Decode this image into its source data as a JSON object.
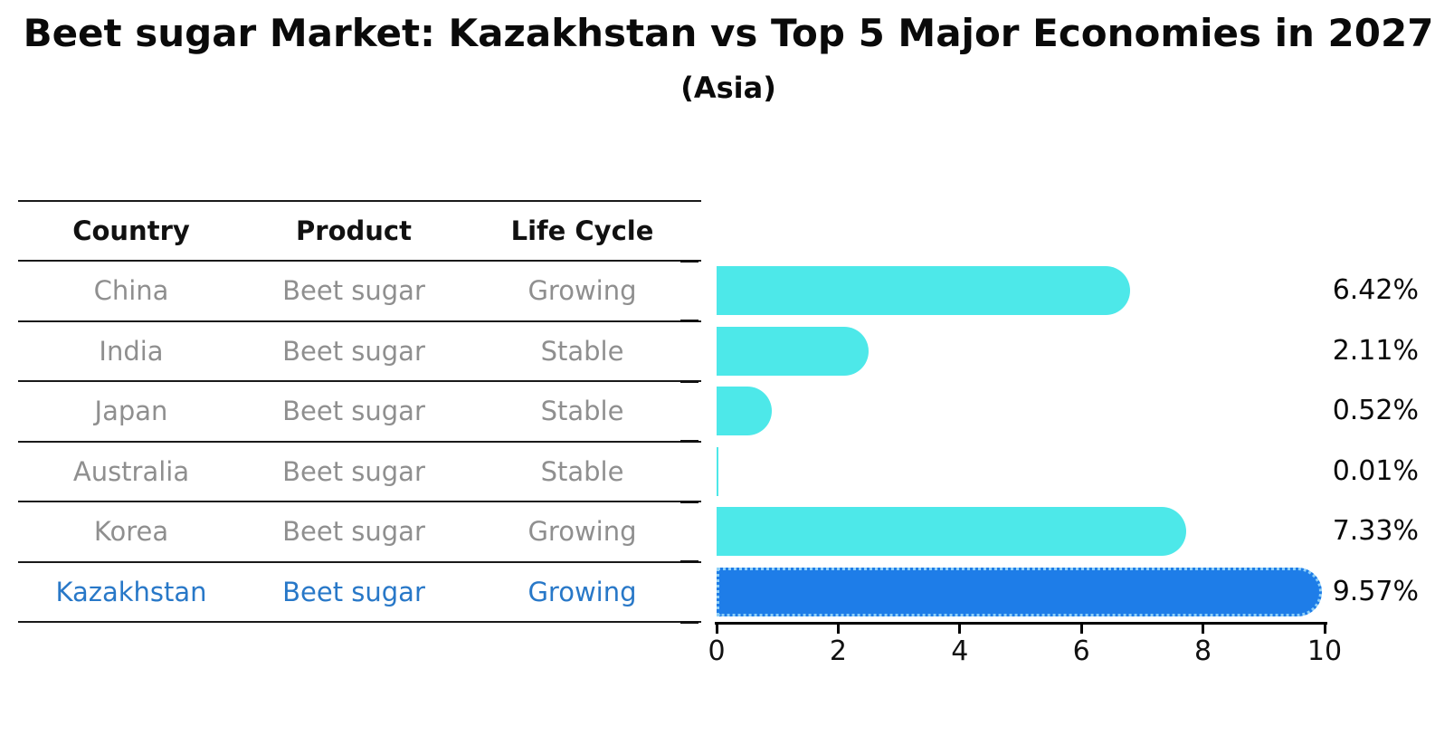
{
  "chart_data": {
    "type": "bar",
    "orientation": "horizontal",
    "title": "Beet sugar Market: Kazakhstan vs Top 5 Major Economies in 2027",
    "subtitle": "(Asia)",
    "categories": [
      "China",
      "India",
      "Japan",
      "Australia",
      "Korea",
      "Kazakhstan"
    ],
    "values": [
      6.42,
      2.11,
      0.52,
      0.01,
      7.33,
      9.57
    ],
    "value_labels": [
      "6.42%",
      "2.11%",
      "0.52%",
      "0.01%",
      "7.33%",
      "9.57%"
    ],
    "xlabel": "",
    "ylabel": "",
    "xlim": [
      0,
      10
    ],
    "x_ticks": [
      0,
      2,
      4,
      6,
      8,
      10
    ],
    "grid": false,
    "legend": "none",
    "bar_color": "#4DE8E9",
    "highlight_bar_color": "#1E7DE8",
    "highlight_bar_edge_color": "#8FD0F8",
    "highlight_index": 5
  },
  "table": {
    "headers": [
      "Country",
      "Product",
      "Life Cycle"
    ],
    "rows": [
      [
        "China",
        "Beet sugar",
        "Growing"
      ],
      [
        "India",
        "Beet sugar",
        "Stable"
      ],
      [
        "Japan",
        "Beet sugar",
        "Stable"
      ],
      [
        "Australia",
        "Beet sugar",
        "Stable"
      ],
      [
        "Korea",
        "Beet sugar",
        "Growing"
      ],
      [
        "Kazakhstan",
        "Beet sugar",
        "Growing"
      ]
    ],
    "highlight_row_index": 5,
    "text_color": "#8F8F8F",
    "highlight_text_color": "#2878C8"
  }
}
